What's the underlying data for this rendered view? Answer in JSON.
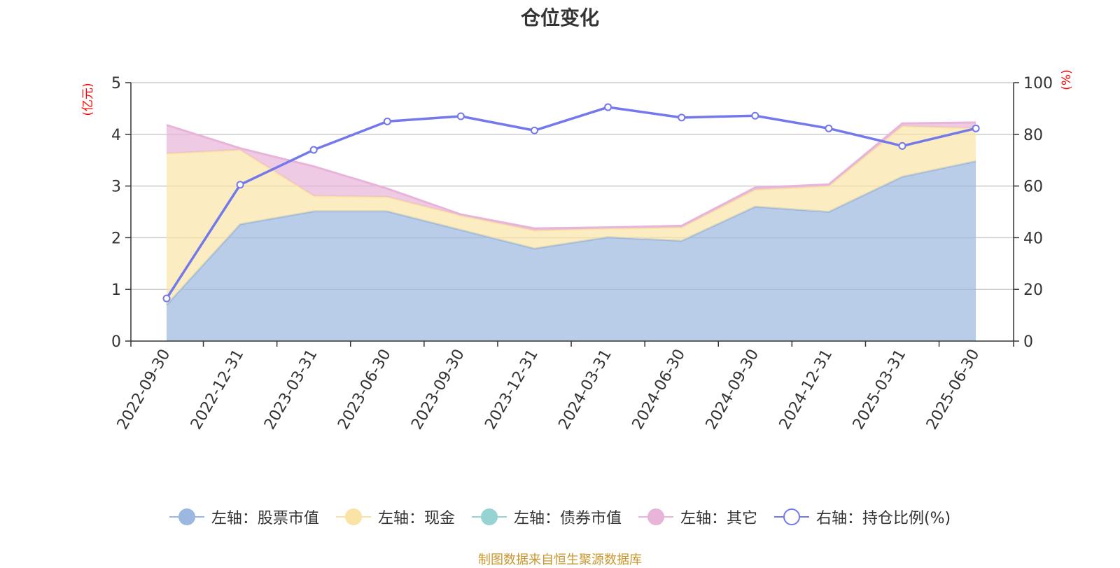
{
  "chart_data": {
    "type": "area",
    "title": "仓位变化",
    "ylabel_left": "(亿元)",
    "ylabel_right": "(%)",
    "x": [
      "2022-09-30",
      "2022-12-31",
      "2023-03-31",
      "2023-06-30",
      "2023-09-30",
      "2023-12-31",
      "2024-03-31",
      "2024-06-30",
      "2024-09-30",
      "2024-12-31",
      "2025-03-31",
      "2025-06-30"
    ],
    "ylim_left": [
      0,
      5
    ],
    "yticks_left": [
      0,
      1,
      2,
      3,
      4,
      5
    ],
    "ylim_right": [
      0,
      100
    ],
    "yticks_right": [
      0,
      20,
      40,
      60,
      80,
      100
    ],
    "grid": true,
    "legend_position": "bottom",
    "series": [
      {
        "name": "左轴：股票市值",
        "axis": "left",
        "stacked": true,
        "color": "#9bb8e0",
        "values": [
          0.7,
          2.26,
          2.51,
          2.51,
          2.15,
          1.79,
          2.01,
          1.94,
          2.6,
          2.5,
          3.18,
          3.48
        ]
      },
      {
        "name": "左轴：现金",
        "axis": "left",
        "stacked": true,
        "color": "#f9e4a6",
        "values": [
          2.93,
          1.44,
          0.3,
          0.28,
          0.28,
          0.35,
          0.17,
          0.26,
          0.33,
          0.5,
          0.98,
          0.64
        ]
      },
      {
        "name": "左轴：债券市值",
        "axis": "left",
        "stacked": true,
        "color": "#96d3d3",
        "values": [
          0,
          0,
          0,
          0,
          0,
          0,
          0,
          0,
          0,
          0,
          0,
          0
        ]
      },
      {
        "name": "左轴：其它",
        "axis": "left",
        "stacked": true,
        "color": "#e8b4da",
        "values": [
          0.55,
          0.03,
          0.57,
          0.16,
          0.02,
          0.04,
          0.02,
          0.03,
          0.04,
          0.03,
          0.05,
          0.11
        ]
      },
      {
        "name": "右轴：持仓比例(%)",
        "axis": "right",
        "type": "line",
        "color": "#7378ec",
        "values": [
          16.5,
          60.5,
          74,
          85,
          87,
          81.5,
          90.5,
          86.5,
          87.2,
          82.3,
          75.5,
          82.3
        ]
      }
    ]
  },
  "source_note": "制图数据来自恒生聚源数据库"
}
